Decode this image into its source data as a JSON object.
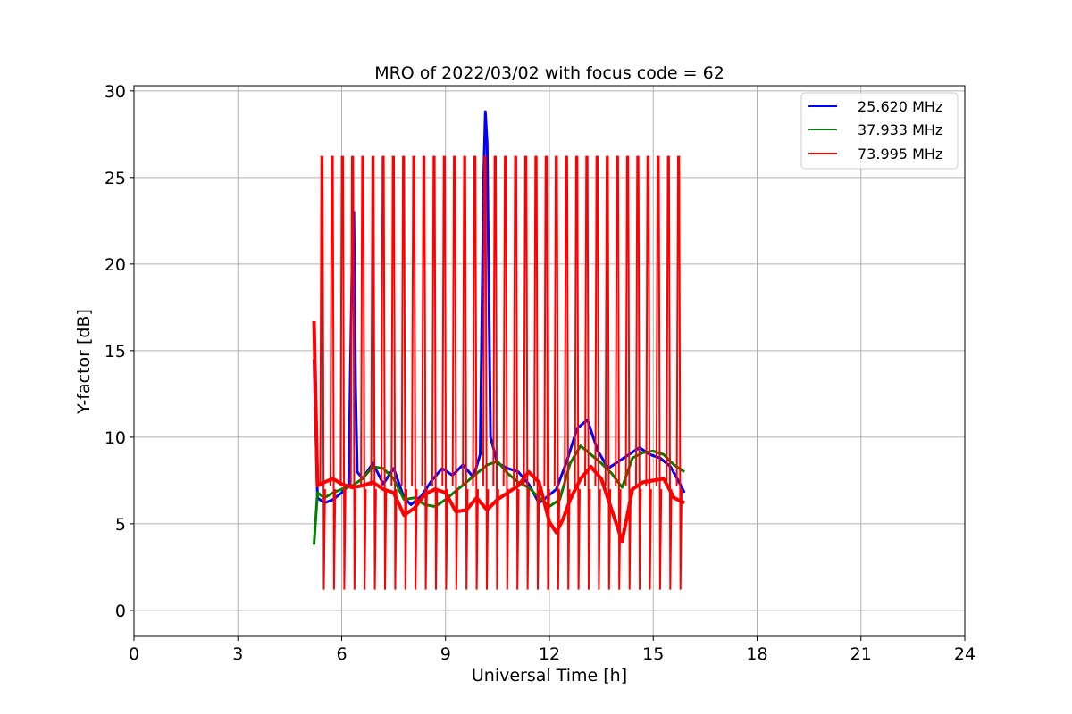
{
  "chart_data": {
    "type": "line",
    "title": "MRO of 2022/03/02 with focus code = 62",
    "xlabel": "Universal Time [h]",
    "ylabel": "Y-factor [dB]",
    "xlim": [
      0,
      24
    ],
    "ylim": [
      -1.5,
      30.3
    ],
    "xticks": [
      0,
      3,
      6,
      9,
      12,
      15,
      18,
      21,
      24
    ],
    "yticks": [
      0,
      5,
      10,
      15,
      20,
      25,
      30
    ],
    "grid": true,
    "legend_position": "top-right",
    "series": [
      {
        "name": "25.620 MHz",
        "color": "#0000ff",
        "x": [
          5.2,
          5.3,
          5.5,
          5.75,
          6.0,
          6.2,
          6.3,
          6.35,
          6.4,
          6.45,
          6.6,
          6.9,
          7.2,
          7.5,
          7.8,
          8.0,
          8.3,
          8.6,
          8.9,
          9.2,
          9.5,
          9.8,
          10.0,
          10.1,
          10.15,
          10.2,
          10.3,
          10.5,
          10.8,
          11.1,
          11.4,
          11.7,
          11.9,
          12.2,
          12.5,
          12.8,
          13.1,
          13.4,
          13.7,
          14.0,
          14.3,
          14.6,
          14.9,
          15.2,
          15.5,
          15.8,
          15.9
        ],
        "y": [
          14.5,
          6.5,
          6.2,
          6.4,
          6.8,
          7.2,
          20.0,
          23.0,
          13.0,
          8.0,
          7.6,
          8.5,
          7.3,
          8.2,
          6.5,
          6.1,
          6.6,
          7.5,
          8.2,
          7.8,
          8.4,
          7.7,
          9.0,
          25.0,
          28.8,
          27.0,
          10.0,
          8.5,
          8.2,
          8.0,
          7.3,
          6.2,
          6.5,
          7.0,
          8.6,
          10.5,
          11.0,
          9.2,
          8.2,
          8.6,
          9.0,
          9.4,
          9.0,
          8.8,
          8.3,
          7.2,
          6.8
        ]
      },
      {
        "name": "37.933 MHz",
        "color": "#008000",
        "x": [
          5.2,
          5.3,
          5.5,
          5.75,
          6.0,
          6.3,
          6.6,
          6.9,
          7.2,
          7.5,
          7.8,
          8.1,
          8.4,
          8.7,
          9.0,
          9.3,
          9.6,
          9.9,
          10.2,
          10.5,
          10.8,
          11.1,
          11.4,
          11.7,
          12.0,
          12.3,
          12.6,
          12.9,
          13.2,
          13.5,
          13.8,
          14.1,
          14.4,
          14.7,
          15.0,
          15.3,
          15.6,
          15.9
        ],
        "y": [
          3.8,
          6.8,
          6.5,
          6.8,
          7.0,
          7.2,
          7.6,
          8.3,
          8.2,
          7.6,
          6.4,
          6.5,
          6.1,
          6.0,
          6.4,
          6.9,
          7.4,
          7.9,
          8.4,
          8.6,
          7.9,
          7.4,
          7.1,
          6.5,
          6.0,
          6.4,
          8.5,
          9.5,
          9.0,
          8.5,
          7.9,
          7.1,
          8.8,
          9.1,
          9.2,
          9.0,
          8.4,
          8.0
        ]
      },
      {
        "name": "73.995 MHz",
        "color": "#ff0000",
        "x": [
          5.2,
          5.3,
          5.5,
          5.75,
          6.0,
          6.3,
          6.6,
          6.9,
          7.2,
          7.5,
          7.8,
          8.1,
          8.4,
          8.7,
          9.0,
          9.3,
          9.6,
          9.9,
          10.2,
          10.5,
          10.8,
          11.1,
          11.4,
          11.7,
          12.0,
          12.2,
          12.4,
          12.6,
          12.9,
          13.2,
          13.5,
          13.8,
          14.1,
          14.4,
          14.7,
          15.0,
          15.3,
          15.6,
          15.9
        ],
        "y": [
          16.7,
          7.2,
          7.4,
          7.6,
          7.3,
          7.1,
          7.2,
          7.4,
          7.0,
          6.8,
          5.5,
          5.9,
          6.7,
          7.0,
          6.8,
          5.7,
          5.8,
          6.5,
          5.8,
          6.4,
          6.8,
          7.2,
          8.0,
          7.4,
          5.1,
          4.5,
          5.3,
          6.4,
          7.6,
          8.3,
          7.6,
          5.8,
          4.0,
          7.0,
          7.4,
          7.5,
          7.6,
          6.5,
          6.2
        ]
      }
    ],
    "periodic_spikes": {
      "count": 36,
      "start_h": 5.45,
      "end_h": 15.75,
      "peak": 26.2,
      "trough": 1.2
    }
  }
}
